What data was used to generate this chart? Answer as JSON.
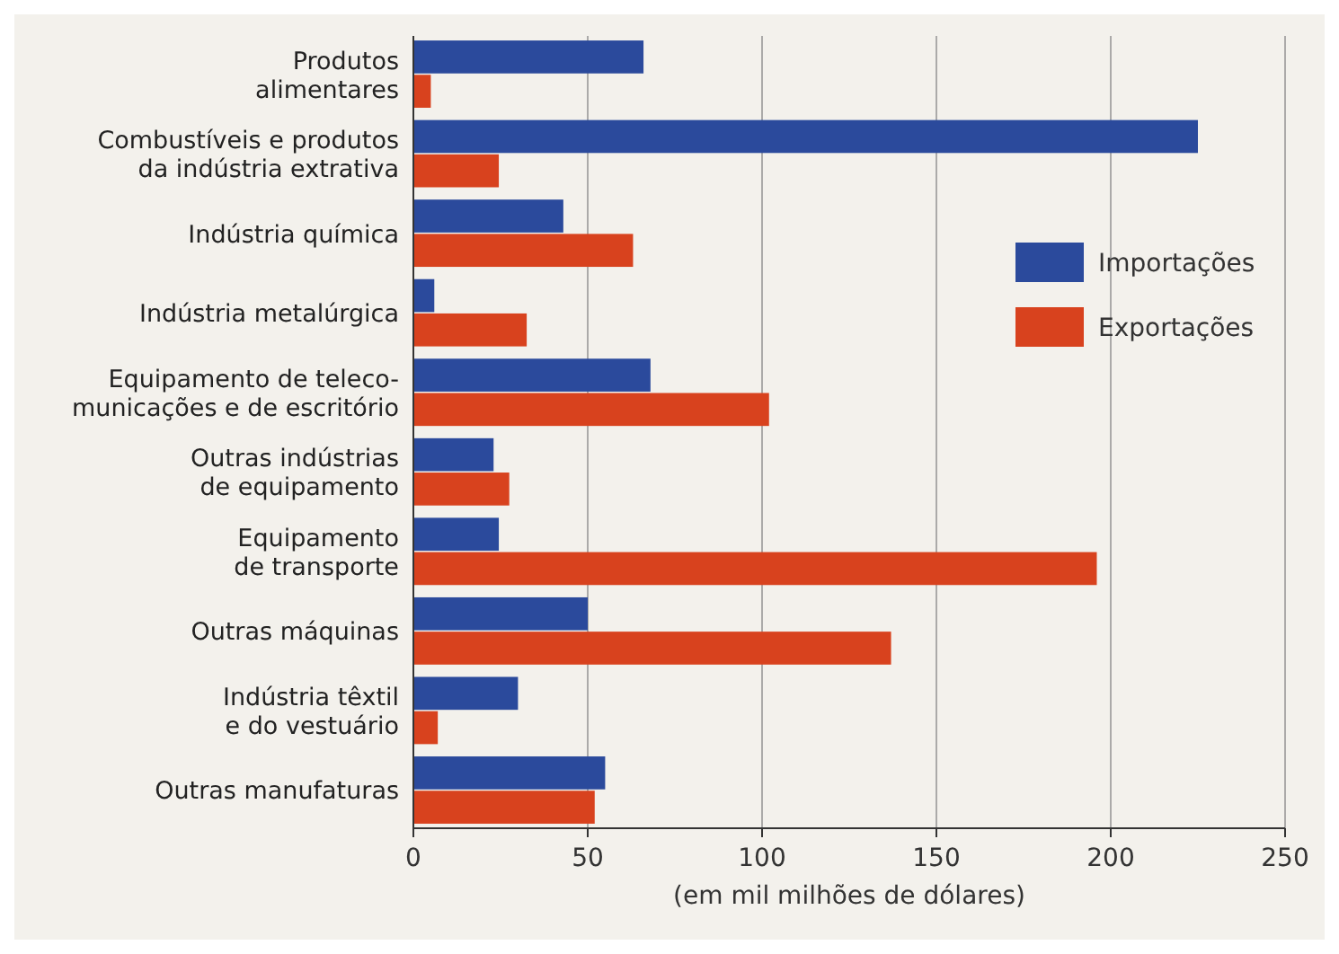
{
  "chart_data": {
    "type": "bar",
    "orientation": "horizontal",
    "xlabel": "(em mil milhões de dólares)",
    "categories": [
      "Produtos\nalimentares",
      "Combustíveis e produtos\nda indústria extrativa",
      "Indústria química",
      "Indústria metalúrgica",
      "Equipamento de teleco-\nmunicações e de escritório",
      "Outras indústrias\nde equipamento",
      "Equipamento\nde transporte",
      "Outras máquinas",
      "Indústria têxtil\ne do vestuário",
      "Outras manufaturas"
    ],
    "series": [
      {
        "name": "Importações",
        "color": "#2b4a9c",
        "values": [
          66,
          225,
          43,
          6,
          68,
          23,
          24.5,
          50,
          30,
          55
        ]
      },
      {
        "name": "Exportações",
        "color": "#d8421e",
        "values": [
          5,
          24.5,
          63,
          32.5,
          102,
          27.5,
          196,
          137,
          7,
          52
        ]
      }
    ],
    "xlim": [
      0,
      250
    ],
    "xticks": [
      0,
      50,
      100,
      150,
      200,
      250
    ],
    "grid": "x",
    "legend": "right"
  }
}
